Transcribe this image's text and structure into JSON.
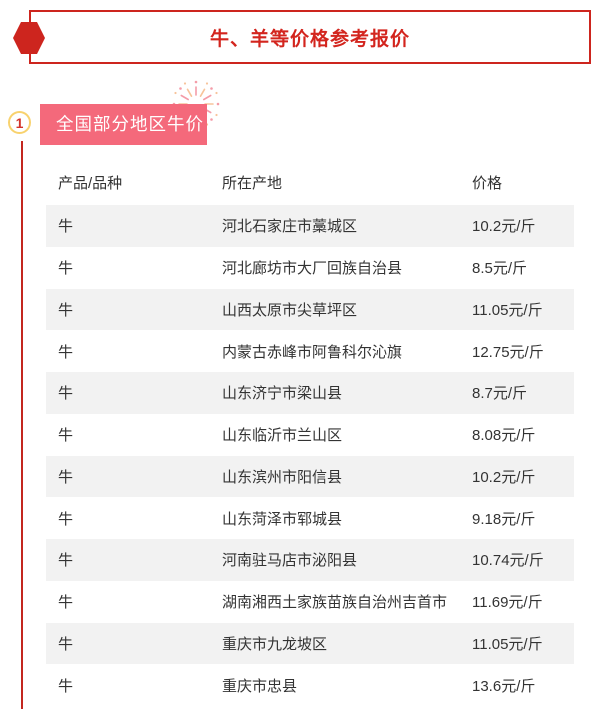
{
  "banner": {
    "title": "牛、羊等价格参考报价",
    "title_color": "#d3251e",
    "border_color": "#cd251e",
    "hexagon_color": "#cd251e"
  },
  "section": {
    "index": "1",
    "label": "全国部分地区牛价",
    "badge_color": "#f4697b",
    "circle_border_color": "#f8d26e",
    "index_color": "#d4332b",
    "line_color": "#c3261f"
  },
  "table": {
    "columns": [
      "产品/品种",
      "所在产地",
      "价格"
    ],
    "rows": [
      [
        "牛",
        "河北石家庄市藁城区",
        "10.2元/斤"
      ],
      [
        "牛",
        "河北廊坊市大厂回族自治县",
        "8.5元/斤"
      ],
      [
        "牛",
        "山西太原市尖草坪区",
        "11.05元/斤"
      ],
      [
        "牛",
        "内蒙古赤峰市阿鲁科尔沁旗",
        "12.75元/斤"
      ],
      [
        "牛",
        "山东济宁市梁山县",
        "8.7元/斤"
      ],
      [
        "牛",
        "山东临沂市兰山区",
        "8.08元/斤"
      ],
      [
        "牛",
        "山东滨州市阳信县",
        "10.2元/斤"
      ],
      [
        "牛",
        "山东菏泽市郓城县",
        "9.18元/斤"
      ],
      [
        "牛",
        "河南驻马店市泌阳县",
        "10.74元/斤"
      ],
      [
        "牛",
        "湖南湘西土家族苗族自治州吉首市",
        "11.69元/斤"
      ],
      [
        "牛",
        "重庆市九龙坡区",
        "11.05元/斤"
      ],
      [
        "牛",
        "重庆市忠县",
        "13.6元/斤"
      ]
    ],
    "zebra_color": "#f2f2f2",
    "text_color": "#333333"
  },
  "icons": {
    "hexagon-icon": "css-clip-path-hexagon",
    "firework-icon": "svg-radial-burst",
    "firework_colors": [
      "#f49ca8",
      "#f7c49b"
    ]
  }
}
